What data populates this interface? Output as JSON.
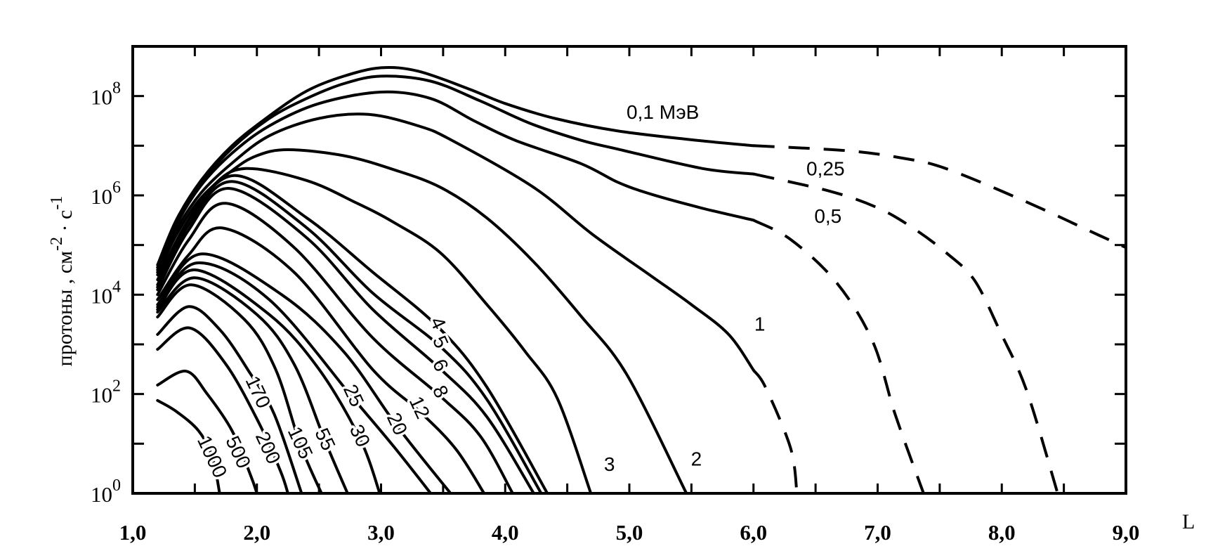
{
  "chart_data": {
    "type": "line",
    "title": "",
    "xlabel": "L",
    "ylabel": {
      "text": "протоны , см",
      "exp1": "-2",
      "mid": " · с",
      "exp2": "-1"
    },
    "xlim": [
      1,
      9
    ],
    "yscale": "log",
    "ylim_log10": [
      0,
      9
    ],
    "grid": false,
    "xticks": [
      {
        "value": 1,
        "label": "1,0"
      },
      {
        "value": 2,
        "label": "2,0"
      },
      {
        "value": 3,
        "label": "3,0"
      },
      {
        "value": 4,
        "label": "4,0"
      },
      {
        "value": 5,
        "label": "5,0"
      },
      {
        "value": 6,
        "label": "6,0"
      },
      {
        "value": 7,
        "label": "7,0"
      },
      {
        "value": 8,
        "label": "8,0"
      },
      {
        "value": 9,
        "label": "9,0"
      }
    ],
    "yticks": [
      {
        "log10": 0,
        "base": "10",
        "exp": "0"
      },
      {
        "log10": 2,
        "base": "10",
        "exp": "2"
      },
      {
        "log10": 4,
        "base": "10",
        "exp": "4"
      },
      {
        "log10": 6,
        "base": "10",
        "exp": "6"
      },
      {
        "log10": 8,
        "base": "10",
        "exp": "8"
      }
    ],
    "series_units": "points are [L, log10(flux in cm^-2 s^-1)]",
    "series": [
      {
        "label": "0,1 МэВ",
        "label_at": [
          5.27,
          7.68
        ],
        "solid": [
          [
            1.2,
            4.6
          ],
          [
            1.35,
            5.5
          ],
          [
            1.55,
            6.3
          ],
          [
            1.8,
            7.0
          ],
          [
            2.1,
            7.6
          ],
          [
            2.4,
            8.1
          ],
          [
            2.7,
            8.4
          ],
          [
            3.0,
            8.57
          ],
          [
            3.3,
            8.5
          ],
          [
            3.7,
            8.15
          ],
          [
            4.0,
            7.85
          ],
          [
            4.4,
            7.55
          ],
          [
            4.9,
            7.3
          ],
          [
            5.5,
            7.12
          ],
          [
            6.0,
            7.0
          ]
        ],
        "dashed": [
          [
            6.0,
            7.0
          ],
          [
            6.75,
            6.9
          ],
          [
            7.2,
            6.75
          ],
          [
            7.55,
            6.54
          ],
          [
            8.17,
            5.9
          ],
          [
            8.78,
            5.2
          ],
          [
            9.0,
            4.95
          ]
        ]
      },
      {
        "label": "0,25",
        "label_at": [
          6.58,
          6.54
        ],
        "solid": [
          [
            1.2,
            4.55
          ],
          [
            1.35,
            5.45
          ],
          [
            1.55,
            6.25
          ],
          [
            1.8,
            6.95
          ],
          [
            2.1,
            7.55
          ],
          [
            2.4,
            7.95
          ],
          [
            2.7,
            8.25
          ],
          [
            3.0,
            8.4
          ],
          [
            3.4,
            8.3
          ],
          [
            3.8,
            7.9
          ],
          [
            4.2,
            7.45
          ],
          [
            4.61,
            7.11
          ],
          [
            4.91,
            6.93
          ],
          [
            5.59,
            6.54
          ],
          [
            6.0,
            6.43
          ]
        ],
        "dashed": [
          [
            6.0,
            6.43
          ],
          [
            6.62,
            6.08
          ],
          [
            7.0,
            5.75
          ],
          [
            7.28,
            5.35
          ],
          [
            7.55,
            4.85
          ],
          [
            7.78,
            4.29
          ],
          [
            7.99,
            3.24
          ],
          [
            8.2,
            2.07
          ],
          [
            8.45,
            0
          ]
        ]
      },
      {
        "label": "0,5",
        "label_at": [
          6.6,
          5.58
        ],
        "solid": [
          [
            1.2,
            4.5
          ],
          [
            1.35,
            5.4
          ],
          [
            1.55,
            6.2
          ],
          [
            1.8,
            6.85
          ],
          [
            2.1,
            7.4
          ],
          [
            2.5,
            7.85
          ],
          [
            3.0,
            8.08
          ],
          [
            3.4,
            7.95
          ],
          [
            3.75,
            7.5
          ],
          [
            4.08,
            7.11
          ],
          [
            4.61,
            6.64
          ],
          [
            4.91,
            6.26
          ],
          [
            5.18,
            6.02
          ],
          [
            5.59,
            5.74
          ],
          [
            6.0,
            5.5
          ]
        ],
        "dashed": [
          [
            6.0,
            5.5
          ],
          [
            6.3,
            5.11
          ],
          [
            6.67,
            4.24
          ],
          [
            6.96,
            3.06
          ],
          [
            7.14,
            1.6
          ],
          [
            7.37,
            0
          ]
        ]
      },
      {
        "label": "1",
        "label_at": [
          6.05,
          3.41
        ],
        "solid": [
          [
            1.2,
            4.45
          ],
          [
            1.35,
            5.3
          ],
          [
            1.55,
            6.05
          ],
          [
            1.8,
            6.65
          ],
          [
            2.1,
            7.2
          ],
          [
            2.5,
            7.55
          ],
          [
            2.9,
            7.63
          ],
          [
            3.3,
            7.4
          ],
          [
            3.57,
            7.11
          ],
          [
            4.23,
            6.16
          ],
          [
            4.7,
            5.22
          ],
          [
            5.18,
            4.37
          ],
          [
            5.5,
            3.8
          ],
          [
            5.8,
            3.2
          ],
          [
            6.0,
            2.48
          ]
        ],
        "dashed": [
          [
            6.0,
            2.48
          ],
          [
            6.1,
            2.12
          ],
          [
            6.3,
            0.9
          ],
          [
            6.35,
            0
          ]
        ]
      },
      {
        "label": "2",
        "label_at": [
          5.54,
          0.69
        ],
        "solid": [
          [
            1.2,
            4.4
          ],
          [
            1.35,
            5.2
          ],
          [
            1.55,
            5.95
          ],
          [
            1.8,
            6.5
          ],
          [
            2.0,
            6.8
          ],
          [
            2.25,
            6.92
          ],
          [
            2.7,
            6.8
          ],
          [
            3.1,
            6.52
          ],
          [
            3.48,
            6.16
          ],
          [
            3.85,
            5.55
          ],
          [
            4.23,
            4.66
          ],
          [
            4.61,
            3.57
          ],
          [
            4.98,
            2.39
          ],
          [
            5.46,
            0
          ]
        ]
      },
      {
        "label": "3",
        "label_at": [
          4.84,
          0.59
        ],
        "solid": [
          [
            1.2,
            4.3
          ],
          [
            1.4,
            5.3
          ],
          [
            1.65,
            6.2
          ],
          [
            1.91,
            6.54
          ],
          [
            2.4,
            6.3
          ],
          [
            2.8,
            5.85
          ],
          [
            3.1,
            5.46
          ],
          [
            3.48,
            4.84
          ],
          [
            3.85,
            3.81
          ],
          [
            4.16,
            2.86
          ],
          [
            4.42,
            1.91
          ],
          [
            4.69,
            0
          ]
        ]
      },
      {
        "label": "4",
        "label_at": [
          3.46,
          3.43
        ],
        "solid": [
          [
            1.2,
            4.2
          ],
          [
            1.45,
            5.5
          ],
          [
            1.82,
            6.4
          ],
          [
            2.4,
            5.55
          ],
          [
            2.93,
            4.46
          ],
          [
            3.46,
            3.35
          ],
          [
            3.85,
            2.15
          ],
          [
            4.34,
            0
          ]
        ]
      },
      {
        "label": "5",
        "label_at": [
          3.48,
          3.05
        ],
        "solid": [
          [
            1.2,
            4.15
          ],
          [
            1.45,
            5.4
          ],
          [
            1.8,
            6.28
          ],
          [
            2.4,
            5.35
          ],
          [
            2.93,
            4.04
          ],
          [
            3.48,
            2.95
          ],
          [
            3.85,
            1.9
          ],
          [
            4.29,
            0
          ]
        ]
      },
      {
        "label": "6",
        "label_at": [
          3.48,
          2.58
        ],
        "solid": [
          [
            1.2,
            4.1
          ],
          [
            1.45,
            5.3
          ],
          [
            1.78,
            6.14
          ],
          [
            2.4,
            5.15
          ],
          [
            2.93,
            3.71
          ],
          [
            3.48,
            2.5
          ],
          [
            3.85,
            1.55
          ],
          [
            4.23,
            0
          ]
        ]
      },
      {
        "label": "8",
        "label_at": [
          3.48,
          2.05
        ],
        "solid": [
          [
            1.2,
            4.0
          ],
          [
            1.45,
            5.1
          ],
          [
            1.75,
            5.84
          ],
          [
            2.3,
            4.95
          ],
          [
            2.93,
            3.14
          ],
          [
            3.48,
            1.95
          ],
          [
            3.8,
            1.15
          ],
          [
            4.06,
            0
          ]
        ]
      },
      {
        "label": "12",
        "label_at": [
          3.31,
          1.73
        ],
        "solid": [
          [
            1.2,
            3.9
          ],
          [
            1.45,
            4.8
          ],
          [
            1.73,
            5.34
          ],
          [
            2.3,
            4.45
          ],
          [
            2.93,
            2.5
          ],
          [
            3.31,
            1.65
          ],
          [
            3.6,
            0.9
          ],
          [
            3.83,
            0
          ]
        ]
      },
      {
        "label": "20",
        "label_at": [
          3.13,
          1.4
        ],
        "solid": [
          [
            1.2,
            3.8
          ],
          [
            1.55,
            4.82
          ],
          [
            2.2,
            4.0
          ],
          [
            2.7,
            2.85
          ],
          [
            3.13,
            1.35
          ],
          [
            3.56,
            0
          ]
        ]
      },
      {
        "label": "25",
        "label_at": [
          2.78,
          1.97
        ],
        "solid": [
          [
            1.2,
            3.75
          ],
          [
            1.52,
            4.64
          ],
          [
            2.1,
            3.9
          ],
          [
            2.78,
            1.9
          ],
          [
            3.1,
            0.95
          ],
          [
            3.4,
            0
          ]
        ]
      },
      {
        "label": "30",
        "label_at": [
          2.83,
          1.16
        ],
        "solid": [
          [
            1.2,
            3.7
          ],
          [
            1.5,
            4.5
          ],
          [
            2.1,
            3.6
          ],
          [
            2.5,
            2.5
          ],
          [
            2.83,
            1.1
          ],
          [
            2.99,
            0
          ]
        ]
      },
      {
        "label": "55",
        "label_at": [
          2.55,
          1.09
        ],
        "solid": [
          [
            1.2,
            3.65
          ],
          [
            1.5,
            4.34
          ],
          [
            2.0,
            3.6
          ],
          [
            2.3,
            2.6
          ],
          [
            2.55,
            1.05
          ],
          [
            2.73,
            0
          ]
        ]
      },
      {
        "label": "105",
        "label_at": [
          2.35,
          1.02
        ],
        "solid": [
          [
            1.2,
            3.55
          ],
          [
            1.47,
            4.2
          ],
          [
            1.9,
            3.5
          ],
          [
            2.15,
            2.5
          ],
          [
            2.35,
            0.98
          ],
          [
            2.52,
            0
          ]
        ]
      },
      {
        "label": "170",
        "label_at": [
          2.01,
          2.04
        ],
        "solid": [
          [
            1.2,
            3.2
          ],
          [
            1.45,
            3.76
          ],
          [
            1.7,
            3.3
          ],
          [
            1.94,
            2.44
          ],
          [
            2.14,
            1.59
          ],
          [
            2.36,
            0
          ]
        ]
      },
      {
        "label": "200",
        "label_at": [
          2.09,
          0.92
        ],
        "solid": [
          [
            1.2,
            2.9
          ],
          [
            1.46,
            3.33
          ],
          [
            1.75,
            2.6
          ],
          [
            2.02,
            1.4
          ],
          [
            2.19,
            0.45
          ],
          [
            2.25,
            0
          ]
        ]
      },
      {
        "label": "500",
        "label_at": [
          1.85,
          0.83
        ],
        "solid": [
          [
            1.2,
            2.18
          ],
          [
            1.43,
            2.46
          ],
          [
            1.6,
            2.0
          ],
          [
            1.8,
            1.26
          ],
          [
            1.95,
            0.36
          ],
          [
            2.0,
            0
          ]
        ]
      },
      {
        "label": "1000",
        "label_at": [
          1.64,
          0.74
        ],
        "solid": [
          [
            1.2,
            1.87
          ],
          [
            1.35,
            1.65
          ],
          [
            1.53,
            1.26
          ],
          [
            1.64,
            0.74
          ],
          [
            1.7,
            0
          ]
        ]
      }
    ]
  }
}
